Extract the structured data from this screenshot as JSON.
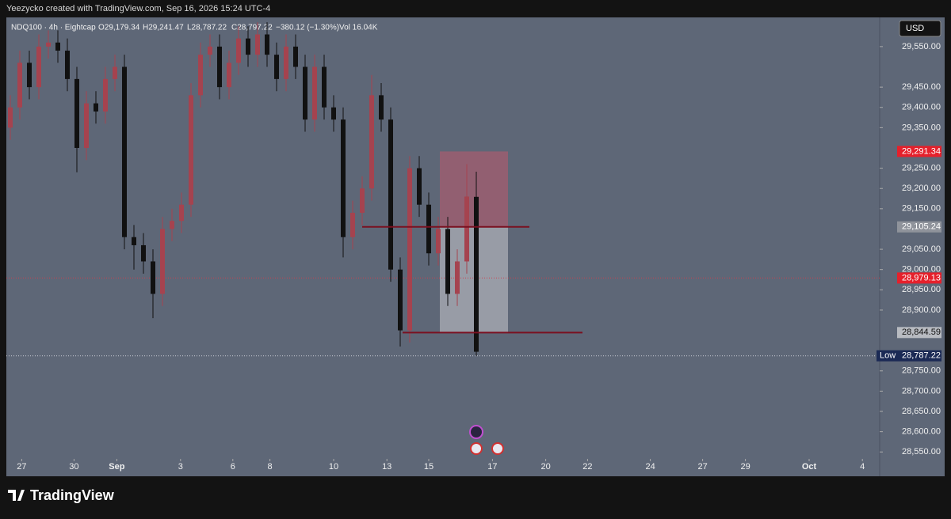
{
  "header": {
    "credit": "Yeezycko created with TradingView.com, Sep 16, 2026 15:24 UTC-4",
    "symbol": "NDQ100 · 4h · Eightcap",
    "open": "O29,179.34",
    "high": "H29,241.47",
    "low": "L28,787.22",
    "close": "C28,797.22",
    "change": "−380.12 (−1.30%)",
    "volume": "Vol 16.04K",
    "currency": "USD",
    "brand": "TradingView"
  },
  "chart_data": {
    "type": "candlestick",
    "open": [
      29350,
      29400,
      29510,
      29450,
      29550,
      29560,
      29540,
      29470,
      29300,
      29410,
      29390,
      29470,
      29500,
      29080,
      29060,
      29020,
      28940,
      29100,
      29120,
      29160,
      29430,
      29530,
      29550,
      29450,
      29510,
      29570,
      29530,
      29580,
      29530,
      29470,
      29550,
      29500,
      29370,
      29500,
      29400,
      29370,
      29080,
      29140,
      29200,
      29430,
      29370,
      29000,
      28850,
      29250,
      29160,
      29040,
      29100,
      28940,
      29020,
      29179.34
    ],
    "high": [
      29430,
      29540,
      29540,
      29580,
      29590,
      29590,
      29570,
      29500,
      29440,
      29440,
      29500,
      29530,
      29530,
      29110,
      29090,
      29050,
      29130,
      29150,
      29190,
      29460,
      29560,
      29580,
      29580,
      29540,
      29600,
      29600,
      29610,
      29610,
      29560,
      29580,
      29580,
      29530,
      29530,
      29530,
      29430,
      29400,
      29170,
      29230,
      29480,
      29460,
      29400,
      29030,
      29280,
      29280,
      29190,
      29130,
      29130,
      29050,
      29260,
      29241.47
    ],
    "low": [
      29320,
      29370,
      29420,
      29420,
      29520,
      29510,
      29440,
      29240,
      29270,
      29360,
      29360,
      29440,
      29050,
      29000,
      28990,
      28880,
      28910,
      29070,
      29090,
      29130,
      29400,
      29500,
      29420,
      29420,
      29480,
      29500,
      29500,
      29500,
      29440,
      29440,
      29470,
      29340,
      29340,
      29370,
      29340,
      29030,
      29050,
      29110,
      29170,
      29340,
      28970,
      28810,
      28820,
      29130,
      29010,
      29010,
      28910,
      28910,
      28990,
      28787.22
    ],
    "close": [
      29400,
      29510,
      29450,
      29550,
      29560,
      29540,
      29470,
      29300,
      29410,
      29390,
      29470,
      29500,
      29080,
      29060,
      29020,
      28940,
      29100,
      29120,
      29160,
      29430,
      29530,
      29550,
      29450,
      29510,
      29570,
      29530,
      29580,
      29530,
      29470,
      29550,
      29500,
      29370,
      29500,
      29400,
      29370,
      29080,
      29140,
      29200,
      29430,
      29370,
      29000,
      28850,
      29250,
      29160,
      29040,
      29100,
      28940,
      29020,
      29180,
      28797.22
    ],
    "up_color": "#a5434f",
    "down_color": "#111111",
    "ylim": [
      28490,
      29622
    ],
    "yticks": [
      {
        "value": 29550,
        "label": "29,550.00"
      },
      {
        "value": 29450,
        "label": "29,450.00"
      },
      {
        "value": 29400,
        "label": "29,400.00"
      },
      {
        "value": 29350,
        "label": "29,350.00"
      },
      {
        "value": 29250,
        "label": "29,250.00"
      },
      {
        "value": 29200,
        "label": "29,200.00"
      },
      {
        "value": 29150,
        "label": "29,150.00"
      },
      {
        "value": 29050,
        "label": "29,050.00"
      },
      {
        "value": 29000,
        "label": "29,000.00"
      },
      {
        "value": 28950,
        "label": "28,950.00"
      },
      {
        "value": 28900,
        "label": "28,900.00"
      },
      {
        "value": 28750,
        "label": "28,750.00"
      },
      {
        "value": 28700,
        "label": "28,700.00"
      },
      {
        "value": 28650,
        "label": "28,650.00"
      },
      {
        "value": 28600,
        "label": "28,600.00"
      },
      {
        "value": 28550,
        "label": "28,550.00"
      }
    ],
    "xticks": [
      {
        "value": 1.2,
        "label": "27"
      },
      {
        "value": 6.7,
        "label": "30"
      },
      {
        "value": 11.2,
        "label": "Sep"
      },
      {
        "value": 17.9,
        "label": "3"
      },
      {
        "value": 23.4,
        "label": "6"
      },
      {
        "value": 27.3,
        "label": "8"
      },
      {
        "value": 34,
        "label": "10"
      },
      {
        "value": 39.6,
        "label": "13"
      },
      {
        "value": 44,
        "label": "15"
      },
      {
        "value": 50.7,
        "label": "17"
      },
      {
        "value": 56.3,
        "label": "20"
      },
      {
        "value": 60.7,
        "label": "22"
      },
      {
        "value": 67.3,
        "label": "24"
      },
      {
        "value": 72.8,
        "label": "27"
      },
      {
        "value": 77.3,
        "label": "29"
      },
      {
        "value": 84,
        "label": "Oct"
      },
      {
        "value": 89.6,
        "label": "4"
      }
    ],
    "price_labels": [
      {
        "value": 29291.34,
        "label": "29,291.34",
        "color": "#e5202b"
      },
      {
        "value": 29105.24,
        "label": "29,105.24",
        "color": "#8f939b"
      },
      {
        "value": 28979.13,
        "label": "28,979.13",
        "color": "#e5202b"
      },
      {
        "value": 28844.59,
        "label": "28,844.59",
        "color": "#b8bbc1"
      },
      {
        "value": 28787.22,
        "label": "28,787.22",
        "color": "#1b2a55",
        "tag": "Low"
      }
    ]
  }
}
